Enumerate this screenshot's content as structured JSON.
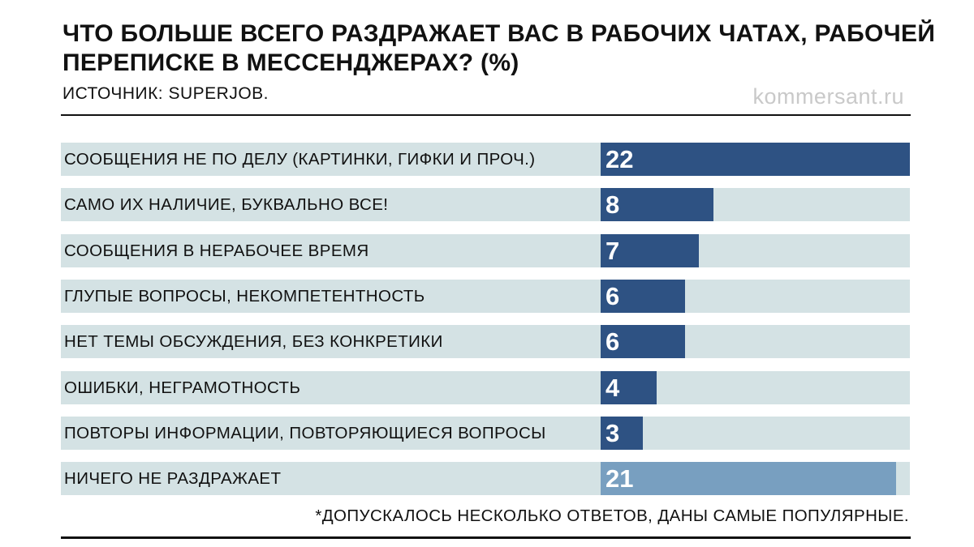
{
  "chart_data": {
    "type": "bar",
    "orientation": "horizontal",
    "title": "ЧТО БОЛЬШЕ ВСЕГО РАЗДРАЖАЕТ ВАС В РАБОЧИХ ЧАТАХ, РАБОЧЕЙ ПЕРЕПИСКЕ В МЕССЕНДЖЕРАХ? (%)",
    "source": "ИСТОЧНИК: SUPERJOB.",
    "brand": "kommersant.ru",
    "footnote": "*ДОПУСКАЛОСЬ НЕСКОЛЬКО ОТВЕТОВ, ДАНЫ САМЫЕ ПОПУЛЯРНЫЕ.",
    "xlim": [
      0,
      22
    ],
    "categories": [
      "СООБЩЕНИЯ НЕ ПО ДЕЛУ (КАРТИНКИ, ГИФКИ И ПРОЧ.)",
      "САМО ИХ НАЛИЧИЕ, БУКВАЛЬНО ВСЕ!",
      "СООБЩЕНИЯ В НЕРАБОЧЕЕ ВРЕМЯ",
      "ГЛУПЫЕ ВОПРОСЫ, НЕКОМПЕТЕНТНОСТЬ",
      "НЕТ ТЕМЫ ОБСУЖДЕНИЯ, БЕЗ КОНКРЕТИКИ",
      "ОШИБКИ, НЕГРАМОТНОСТЬ",
      "ПОВТОРЫ ИНФОРМАЦИИ, ПОВТОРЯЮЩИЕСЯ ВОПРОСЫ",
      "НИЧЕГО НЕ РАЗДРАЖАЕТ"
    ],
    "values": [
      22,
      8,
      7,
      6,
      6,
      4,
      3,
      21
    ],
    "colors": {
      "bar": "#2e5283",
      "highlight": "#789fc0",
      "track": "#d4e2e4"
    },
    "highlight_index": 7
  }
}
